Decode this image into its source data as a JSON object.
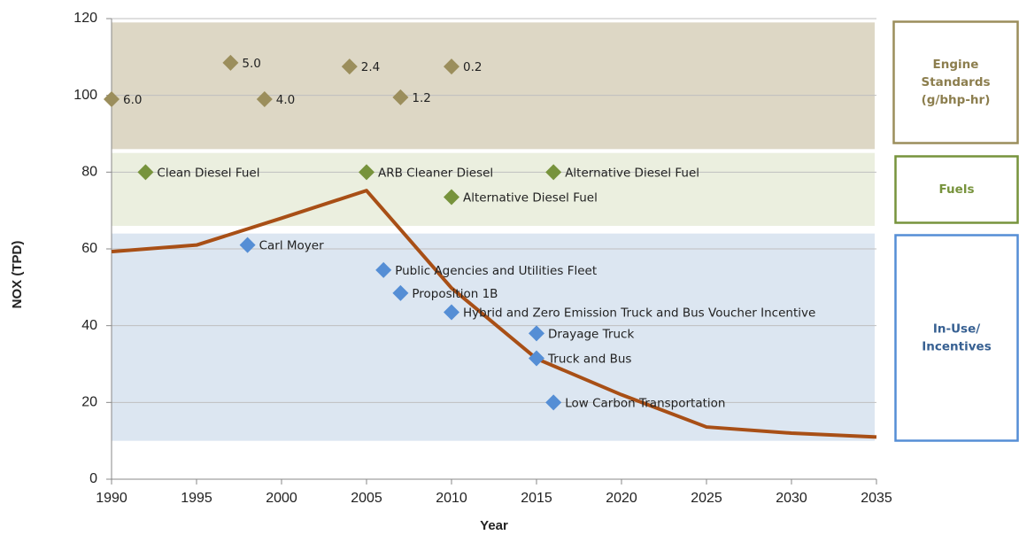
{
  "chart_data": {
    "type": "line",
    "x_label": "Year",
    "y_label": "NOX (TPD)",
    "xlim": [
      1990,
      2035
    ],
    "xticks": [
      1990,
      1995,
      2000,
      2005,
      2010,
      2015,
      2020,
      2025,
      2030,
      2035
    ],
    "ylim": [
      0,
      120
    ],
    "yticks": [
      0,
      20,
      40,
      60,
      80,
      100,
      120
    ],
    "grid": true,
    "line": {
      "color": "#a84f16",
      "x": [
        1990,
        1995,
        2000,
        2005,
        2010,
        2015,
        2020,
        2025,
        2030,
        2035
      ],
      "values": [
        59.3,
        61,
        68,
        75.2,
        49.8,
        31.4,
        22,
        13.6,
        12,
        11
      ]
    },
    "bands": [
      {
        "label": [
          "Engine",
          "Standards",
          "(g/bhp-hr)"
        ],
        "range": [
          86,
          119
        ],
        "fill": "#ddd7c5",
        "color": "#9b8e5c",
        "text_color": "#8c7e4e",
        "points": {
          "x": [
            1990,
            1997,
            1999,
            2004,
            2007,
            2010
          ],
          "values": [
            99,
            108.5,
            99,
            107.5,
            99.5,
            107.5
          ],
          "labels": [
            "6.0",
            "5.0",
            "4.0",
            "2.4",
            "1.2",
            "0.2"
          ]
        }
      },
      {
        "label": [
          "Fuels"
        ],
        "range": [
          66,
          85
        ],
        "fill": "#ebefdf",
        "color": "#77933c",
        "text_color": "#77933c",
        "points": {
          "x": [
            1992,
            2005,
            2016,
            2010
          ],
          "values": [
            80,
            80,
            80,
            73.5
          ],
          "labels": [
            "Clean Diesel Fuel",
            "ARB Cleaner Diesel",
            "Alternative Diesel Fuel",
            "Alternative Diesel Fuel"
          ]
        }
      },
      {
        "label": [
          "In-Use/",
          "Incentives"
        ],
        "range": [
          10,
          64
        ],
        "fill": "#dce6f1",
        "color": "#558ed5",
        "text_color": "#376092",
        "points": {
          "x": [
            1998,
            2006,
            2007,
            2010,
            2015,
            2015,
            2016
          ],
          "values": [
            61,
            54.5,
            48.5,
            43.5,
            38,
            31.5,
            20
          ],
          "labels": [
            "Carl Moyer",
            "Public Agencies and Utilities Fleet",
            "Proposition 1B",
            "Hybrid and Zero Emission Truck and Bus Voucher Incentive",
            "Drayage Truck",
            "Truck and Bus",
            "Low Carbon Transportation"
          ]
        }
      }
    ]
  }
}
